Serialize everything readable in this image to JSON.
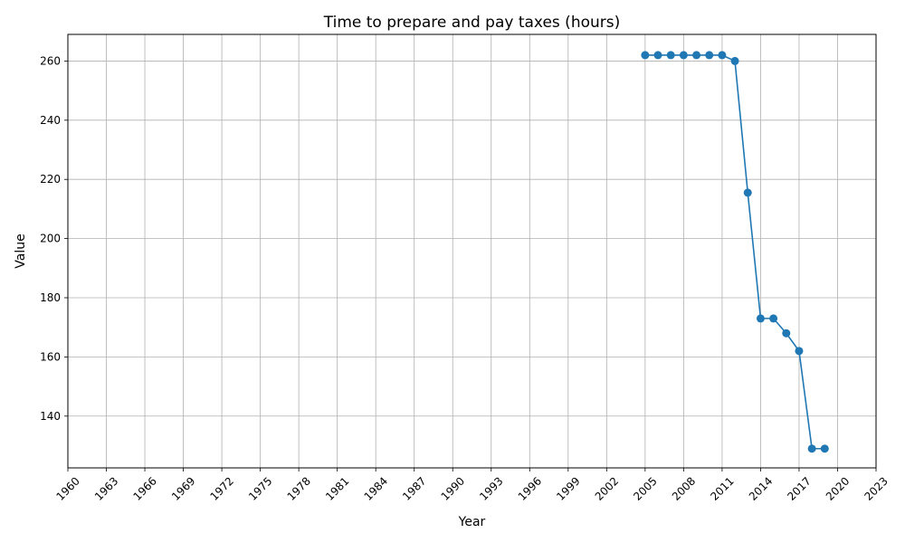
{
  "chart_data": {
    "type": "line",
    "title": "Time to prepare and pay taxes (hours)",
    "xlabel": "Year",
    "ylabel": "Value",
    "xlim": [
      1960,
      2023
    ],
    "ylim": [
      122.5,
      269
    ],
    "x_ticks": [
      1960,
      1963,
      1966,
      1969,
      1972,
      1975,
      1978,
      1981,
      1984,
      1987,
      1990,
      1993,
      1996,
      1999,
      2002,
      2005,
      2008,
      2011,
      2014,
      2017,
      2020,
      2023
    ],
    "y_ticks": [
      140,
      160,
      180,
      200,
      220,
      240,
      260
    ],
    "grid": true,
    "series": [
      {
        "color": "#1f77b4",
        "x": [
          2005,
          2006,
          2007,
          2008,
          2009,
          2010,
          2011,
          2012,
          2013,
          2014,
          2015,
          2016,
          2017,
          2018,
          2019
        ],
        "y": [
          262,
          262,
          262,
          262,
          262,
          262,
          262,
          260,
          215.5,
          173,
          173,
          168,
          162,
          129,
          129
        ]
      }
    ]
  }
}
